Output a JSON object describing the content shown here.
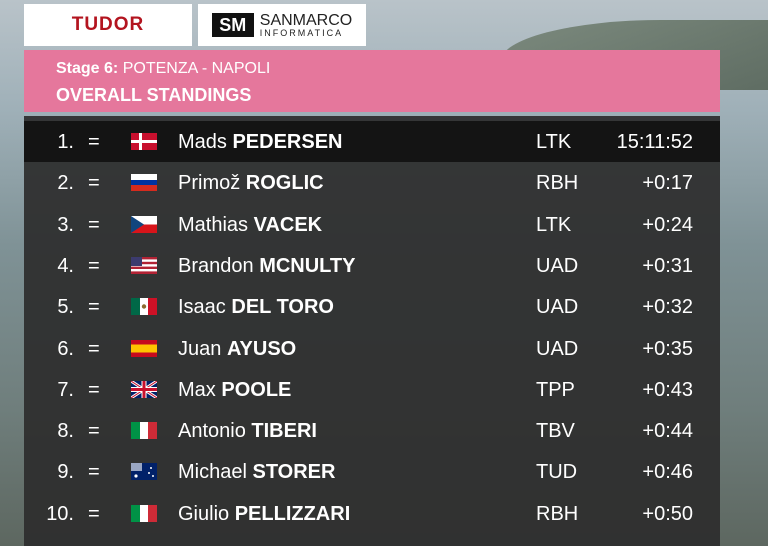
{
  "sponsors": {
    "left": "TUDOR",
    "right": "SANMARCO",
    "right_sub": "INFORMATICA"
  },
  "header": {
    "stage": "Stage 6:",
    "route": "POTENZA - NAPOLI",
    "title": "OVERALL STANDINGS"
  },
  "table": {
    "rows": [
      [
        "1.",
        "=",
        "Mads",
        "PEDERSEN",
        "LTK",
        "15:11:52"
      ],
      [
        "2.",
        "=",
        "Primož",
        "ROGLIC",
        "RBH",
        "+0:17"
      ],
      [
        "3.",
        "=",
        "Mathias",
        "VACEK",
        "LTK",
        "+0:24"
      ],
      [
        "4.",
        "=",
        "Brandon",
        "MCNULTY",
        "UAD",
        "+0:31"
      ],
      [
        "5.",
        "=",
        "Isaac",
        "DEL TORO",
        "UAD",
        "+0:32"
      ],
      [
        "6.",
        "=",
        "Juan",
        "AYUSO",
        "UAD",
        "+0:35"
      ],
      [
        "7.",
        "=",
        "Max",
        "POOLE",
        "TPP",
        "+0:43"
      ],
      [
        "8.",
        "=",
        "Antonio",
        "TIBERI",
        "TBV",
        "+0:44"
      ],
      [
        "9.",
        "=",
        "Michael",
        "STORER",
        "TUD",
        "+0:46"
      ],
      [
        "10.",
        "=",
        "Giulio",
        "PELLIZZARI",
        "RBH",
        "+0:50"
      ]
    ]
  }
}
